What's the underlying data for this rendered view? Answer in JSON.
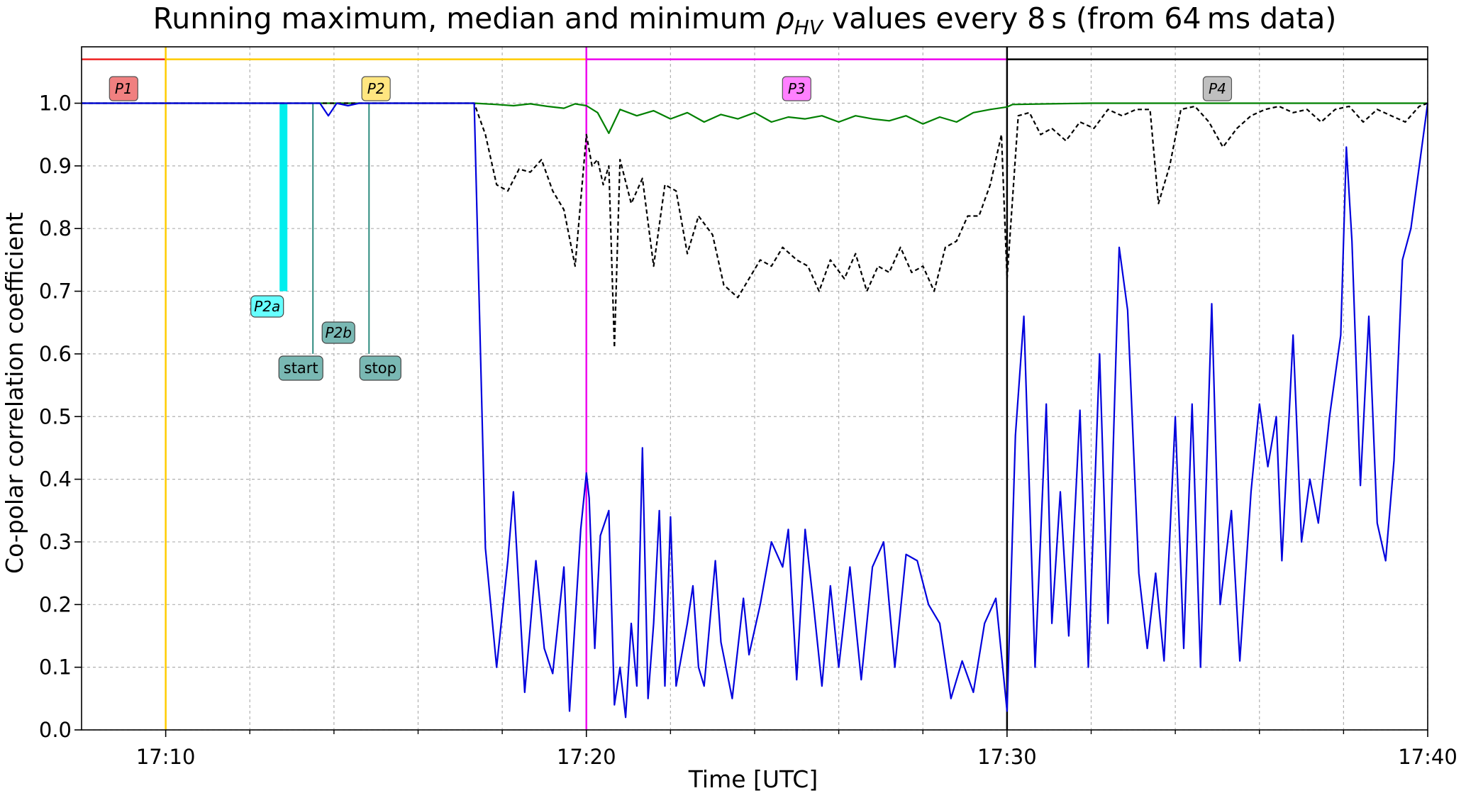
{
  "chart_data": {
    "type": "line",
    "title": "Running maximum, median and minimum ρHV values every 8 s (from 64 ms data)",
    "title_parts": {
      "before": "Running maximum, median and minimum ",
      "symbol": "ρ",
      "subscript": "HV",
      "after": " values every 8 s (from 64 ms data)"
    },
    "xlabel": "Time [UTC]",
    "ylabel": "Co-polar correlation coefficient",
    "xlim": [
      "17:08",
      "17:40"
    ],
    "ylim": [
      0.0,
      1.09
    ],
    "x_ticks": [
      "17:10",
      "17:20",
      "17:30",
      "17:40"
    ],
    "x_minor_ticks": [
      "17:12",
      "17:14",
      "17:16",
      "17:18",
      "17:22",
      "17:24",
      "17:26",
      "17:28",
      "17:32",
      "17:34",
      "17:36",
      "17:38"
    ],
    "y_ticks": [
      "0.0",
      "0.1",
      "0.2",
      "0.3",
      "0.4",
      "0.5",
      "0.6",
      "0.7",
      "0.8",
      "0.9",
      "1.0"
    ],
    "grid": true,
    "colors": {
      "max": "#008000",
      "median": "#000000",
      "min": "#0000dd",
      "p1": "#ee2222",
      "p2": "#ffcc00",
      "p3": "#ee00ee",
      "p4": "#000000",
      "p2a": "#00eeee",
      "p2b": "#2e8b7f"
    },
    "phases": [
      {
        "label": "P1",
        "start": "17:08",
        "end": "17:10",
        "color": "#ee2222",
        "box": "#f08080"
      },
      {
        "label": "P2",
        "start": "17:10",
        "end": "17:20",
        "color": "#ffcc00",
        "box": "#ffe680"
      },
      {
        "label": "P3",
        "start": "17:20",
        "end": "17:30",
        "color": "#ee00ee",
        "box": "#ff80ff"
      },
      {
        "label": "P4",
        "start": "17:30",
        "end": "17:40",
        "color": "#000000",
        "box": "#bfbfbf"
      }
    ],
    "markers": [
      {
        "label": "P2a",
        "time": "17:12:48",
        "from": 0.7,
        "to": 1.0,
        "color": "#00eeee"
      },
      {
        "label": "P2b",
        "time": "17:13:30",
        "from": 0.6,
        "to": 1.0,
        "color": "#2e8b7f"
      },
      {
        "label": "start",
        "time": "17:13:30",
        "color": "#2e8b7f"
      },
      {
        "label": "stop",
        "time": "17:14:50",
        "color": "#2e8b7f"
      }
    ],
    "series": [
      {
        "key": "max",
        "style": "solid",
        "points": [
          [
            "17:08:00",
            1.0
          ],
          [
            "17:17:20",
            1.0
          ],
          [
            "17:17:52",
            0.998
          ],
          [
            "17:18:16",
            0.996
          ],
          [
            "17:18:40",
            0.999
          ],
          [
            "17:19:04",
            0.995
          ],
          [
            "17:19:28",
            0.992
          ],
          [
            "17:19:44",
            0.999
          ],
          [
            "17:20:00",
            0.996
          ],
          [
            "17:20:16",
            0.985
          ],
          [
            "17:20:32",
            0.952
          ],
          [
            "17:20:48",
            0.99
          ],
          [
            "17:21:12",
            0.98
          ],
          [
            "17:21:36",
            0.988
          ],
          [
            "17:22:00",
            0.975
          ],
          [
            "17:22:24",
            0.985
          ],
          [
            "17:22:48",
            0.97
          ],
          [
            "17:23:12",
            0.982
          ],
          [
            "17:23:36",
            0.975
          ],
          [
            "17:24:00",
            0.985
          ],
          [
            "17:24:24",
            0.97
          ],
          [
            "17:24:48",
            0.978
          ],
          [
            "17:25:12",
            0.975
          ],
          [
            "17:25:36",
            0.98
          ],
          [
            "17:26:00",
            0.97
          ],
          [
            "17:26:24",
            0.98
          ],
          [
            "17:26:48",
            0.975
          ],
          [
            "17:27:12",
            0.972
          ],
          [
            "17:27:36",
            0.98
          ],
          [
            "17:28:00",
            0.967
          ],
          [
            "17:28:24",
            0.978
          ],
          [
            "17:28:48",
            0.97
          ],
          [
            "17:29:12",
            0.985
          ],
          [
            "17:29:36",
            0.99
          ],
          [
            "17:30:00",
            0.994
          ],
          [
            "17:30:08",
            0.998
          ],
          [
            "17:31:00",
            0.999
          ],
          [
            "17:32:00",
            1.0
          ],
          [
            "17:40:00",
            1.0
          ]
        ]
      },
      {
        "key": "median",
        "style": "dashed",
        "points": [
          [
            "17:08:00",
            1.0
          ],
          [
            "17:17:20",
            1.0
          ],
          [
            "17:17:36",
            0.95
          ],
          [
            "17:17:52",
            0.87
          ],
          [
            "17:18:08",
            0.86
          ],
          [
            "17:18:24",
            0.895
          ],
          [
            "17:18:40",
            0.89
          ],
          [
            "17:18:56",
            0.91
          ],
          [
            "17:19:12",
            0.86
          ],
          [
            "17:19:28",
            0.83
          ],
          [
            "17:19:44",
            0.74
          ],
          [
            "17:20:00",
            0.95
          ],
          [
            "17:20:08",
            0.9
          ],
          [
            "17:20:16",
            0.91
          ],
          [
            "17:20:24",
            0.87
          ],
          [
            "17:20:32",
            0.9
          ],
          [
            "17:20:40",
            0.61
          ],
          [
            "17:20:48",
            0.91
          ],
          [
            "17:21:04",
            0.84
          ],
          [
            "17:21:20",
            0.88
          ],
          [
            "17:21:36",
            0.74
          ],
          [
            "17:21:52",
            0.87
          ],
          [
            "17:22:08",
            0.86
          ],
          [
            "17:22:24",
            0.76
          ],
          [
            "17:22:40",
            0.82
          ],
          [
            "17:23:00",
            0.79
          ],
          [
            "17:23:16",
            0.71
          ],
          [
            "17:23:36",
            0.69
          ],
          [
            "17:23:52",
            0.72
          ],
          [
            "17:24:08",
            0.75
          ],
          [
            "17:24:24",
            0.74
          ],
          [
            "17:24:40",
            0.77
          ],
          [
            "17:25:00",
            0.75
          ],
          [
            "17:25:16",
            0.74
          ],
          [
            "17:25:32",
            0.7
          ],
          [
            "17:25:48",
            0.75
          ],
          [
            "17:26:08",
            0.72
          ],
          [
            "17:26:24",
            0.76
          ],
          [
            "17:26:40",
            0.7
          ],
          [
            "17:26:56",
            0.74
          ],
          [
            "17:27:12",
            0.73
          ],
          [
            "17:27:28",
            0.77
          ],
          [
            "17:27:44",
            0.73
          ],
          [
            "17:28:00",
            0.74
          ],
          [
            "17:28:16",
            0.7
          ],
          [
            "17:28:32",
            0.77
          ],
          [
            "17:28:48",
            0.78
          ],
          [
            "17:29:04",
            0.82
          ],
          [
            "17:29:20",
            0.82
          ],
          [
            "17:29:36",
            0.87
          ],
          [
            "17:29:52",
            0.95
          ],
          [
            "17:30:00",
            0.72
          ],
          [
            "17:30:16",
            0.98
          ],
          [
            "17:30:32",
            0.985
          ],
          [
            "17:30:48",
            0.95
          ],
          [
            "17:31:04",
            0.96
          ],
          [
            "17:31:24",
            0.94
          ],
          [
            "17:31:44",
            0.97
          ],
          [
            "17:32:04",
            0.96
          ],
          [
            "17:32:24",
            0.99
          ],
          [
            "17:32:44",
            0.98
          ],
          [
            "17:33:04",
            0.99
          ],
          [
            "17:33:24",
            0.99
          ],
          [
            "17:33:36",
            0.84
          ],
          [
            "17:33:52",
            0.9
          ],
          [
            "17:34:08",
            0.99
          ],
          [
            "17:34:28",
            0.995
          ],
          [
            "17:34:48",
            0.97
          ],
          [
            "17:35:08",
            0.93
          ],
          [
            "17:35:28",
            0.96
          ],
          [
            "17:35:48",
            0.98
          ],
          [
            "17:36:08",
            0.99
          ],
          [
            "17:36:28",
            0.995
          ],
          [
            "17:36:48",
            0.985
          ],
          [
            "17:37:08",
            0.99
          ],
          [
            "17:37:28",
            0.97
          ],
          [
            "17:37:48",
            0.99
          ],
          [
            "17:38:08",
            0.995
          ],
          [
            "17:38:28",
            0.97
          ],
          [
            "17:38:48",
            0.99
          ],
          [
            "17:39:08",
            0.98
          ],
          [
            "17:39:28",
            0.97
          ],
          [
            "17:39:48",
            0.995
          ],
          [
            "17:40:00",
            1.0
          ]
        ]
      },
      {
        "key": "min",
        "style": "solid",
        "points": [
          [
            "17:08:00",
            1.0
          ],
          [
            "17:13:40",
            1.0
          ],
          [
            "17:13:52",
            0.98
          ],
          [
            "17:14:04",
            1.0
          ],
          [
            "17:14:20",
            0.996
          ],
          [
            "17:14:36",
            1.0
          ],
          [
            "17:17:20",
            1.0
          ],
          [
            "17:17:36",
            0.29
          ],
          [
            "17:17:52",
            0.1
          ],
          [
            "17:18:08",
            0.27
          ],
          [
            "17:18:16",
            0.38
          ],
          [
            "17:18:32",
            0.06
          ],
          [
            "17:18:48",
            0.27
          ],
          [
            "17:19:00",
            0.13
          ],
          [
            "17:19:12",
            0.09
          ],
          [
            "17:19:28",
            0.26
          ],
          [
            "17:19:36",
            0.03
          ],
          [
            "17:19:52",
            0.32
          ],
          [
            "17:20:00",
            0.41
          ],
          [
            "17:20:04",
            0.37
          ],
          [
            "17:20:12",
            0.13
          ],
          [
            "17:20:20",
            0.31
          ],
          [
            "17:20:32",
            0.35
          ],
          [
            "17:20:40",
            0.04
          ],
          [
            "17:20:48",
            0.1
          ],
          [
            "17:20:56",
            0.02
          ],
          [
            "17:21:04",
            0.17
          ],
          [
            "17:21:12",
            0.07
          ],
          [
            "17:21:20",
            0.45
          ],
          [
            "17:21:28",
            0.05
          ],
          [
            "17:21:36",
            0.17
          ],
          [
            "17:21:44",
            0.35
          ],
          [
            "17:21:52",
            0.07
          ],
          [
            "17:22:00",
            0.34
          ],
          [
            "17:22:08",
            0.07
          ],
          [
            "17:22:24",
            0.17
          ],
          [
            "17:22:32",
            0.23
          ],
          [
            "17:22:40",
            0.1
          ],
          [
            "17:22:48",
            0.07
          ],
          [
            "17:23:04",
            0.27
          ],
          [
            "17:23:12",
            0.14
          ],
          [
            "17:23:28",
            0.05
          ],
          [
            "17:23:44",
            0.21
          ],
          [
            "17:23:52",
            0.12
          ],
          [
            "17:24:08",
            0.2
          ],
          [
            "17:24:24",
            0.3
          ],
          [
            "17:24:40",
            0.26
          ],
          [
            "17:24:48",
            0.32
          ],
          [
            "17:25:00",
            0.08
          ],
          [
            "17:25:12",
            0.32
          ],
          [
            "17:25:24",
            0.2
          ],
          [
            "17:25:36",
            0.07
          ],
          [
            "17:25:48",
            0.23
          ],
          [
            "17:26:00",
            0.1
          ],
          [
            "17:26:16",
            0.26
          ],
          [
            "17:26:32",
            0.08
          ],
          [
            "17:26:48",
            0.26
          ],
          [
            "17:27:04",
            0.3
          ],
          [
            "17:27:20",
            0.1
          ],
          [
            "17:27:36",
            0.28
          ],
          [
            "17:27:52",
            0.27
          ],
          [
            "17:28:08",
            0.2
          ],
          [
            "17:28:24",
            0.17
          ],
          [
            "17:28:40",
            0.05
          ],
          [
            "17:28:56",
            0.11
          ],
          [
            "17:29:12",
            0.06
          ],
          [
            "17:29:28",
            0.17
          ],
          [
            "17:29:44",
            0.21
          ],
          [
            "17:30:00",
            0.03
          ],
          [
            "17:30:12",
            0.47
          ],
          [
            "17:30:24",
            0.66
          ],
          [
            "17:30:40",
            0.1
          ],
          [
            "17:30:56",
            0.52
          ],
          [
            "17:31:04",
            0.17
          ],
          [
            "17:31:16",
            0.38
          ],
          [
            "17:31:28",
            0.15
          ],
          [
            "17:31:44",
            0.51
          ],
          [
            "17:31:56",
            0.1
          ],
          [
            "17:32:12",
            0.6
          ],
          [
            "17:32:24",
            0.17
          ],
          [
            "17:32:40",
            0.77
          ],
          [
            "17:32:52",
            0.67
          ],
          [
            "17:33:08",
            0.25
          ],
          [
            "17:33:20",
            0.13
          ],
          [
            "17:33:32",
            0.25
          ],
          [
            "17:33:44",
            0.11
          ],
          [
            "17:34:00",
            0.5
          ],
          [
            "17:34:12",
            0.13
          ],
          [
            "17:34:24",
            0.52
          ],
          [
            "17:34:36",
            0.1
          ],
          [
            "17:34:52",
            0.68
          ],
          [
            "17:35:04",
            0.2
          ],
          [
            "17:35:20",
            0.35
          ],
          [
            "17:35:32",
            0.11
          ],
          [
            "17:35:48",
            0.38
          ],
          [
            "17:36:00",
            0.52
          ],
          [
            "17:36:12",
            0.42
          ],
          [
            "17:36:24",
            0.5
          ],
          [
            "17:36:32",
            0.27
          ],
          [
            "17:36:48",
            0.63
          ],
          [
            "17:37:00",
            0.3
          ],
          [
            "17:37:12",
            0.4
          ],
          [
            "17:37:24",
            0.33
          ],
          [
            "17:37:40",
            0.5
          ],
          [
            "17:37:56",
            0.63
          ],
          [
            "17:38:04",
            0.93
          ],
          [
            "17:38:12",
            0.78
          ],
          [
            "17:38:24",
            0.39
          ],
          [
            "17:38:36",
            0.66
          ],
          [
            "17:38:48",
            0.33
          ],
          [
            "17:39:00",
            0.27
          ],
          [
            "17:39:12",
            0.43
          ],
          [
            "17:39:24",
            0.75
          ],
          [
            "17:39:36",
            0.8
          ],
          [
            "17:40:00",
            1.0
          ]
        ]
      }
    ]
  }
}
